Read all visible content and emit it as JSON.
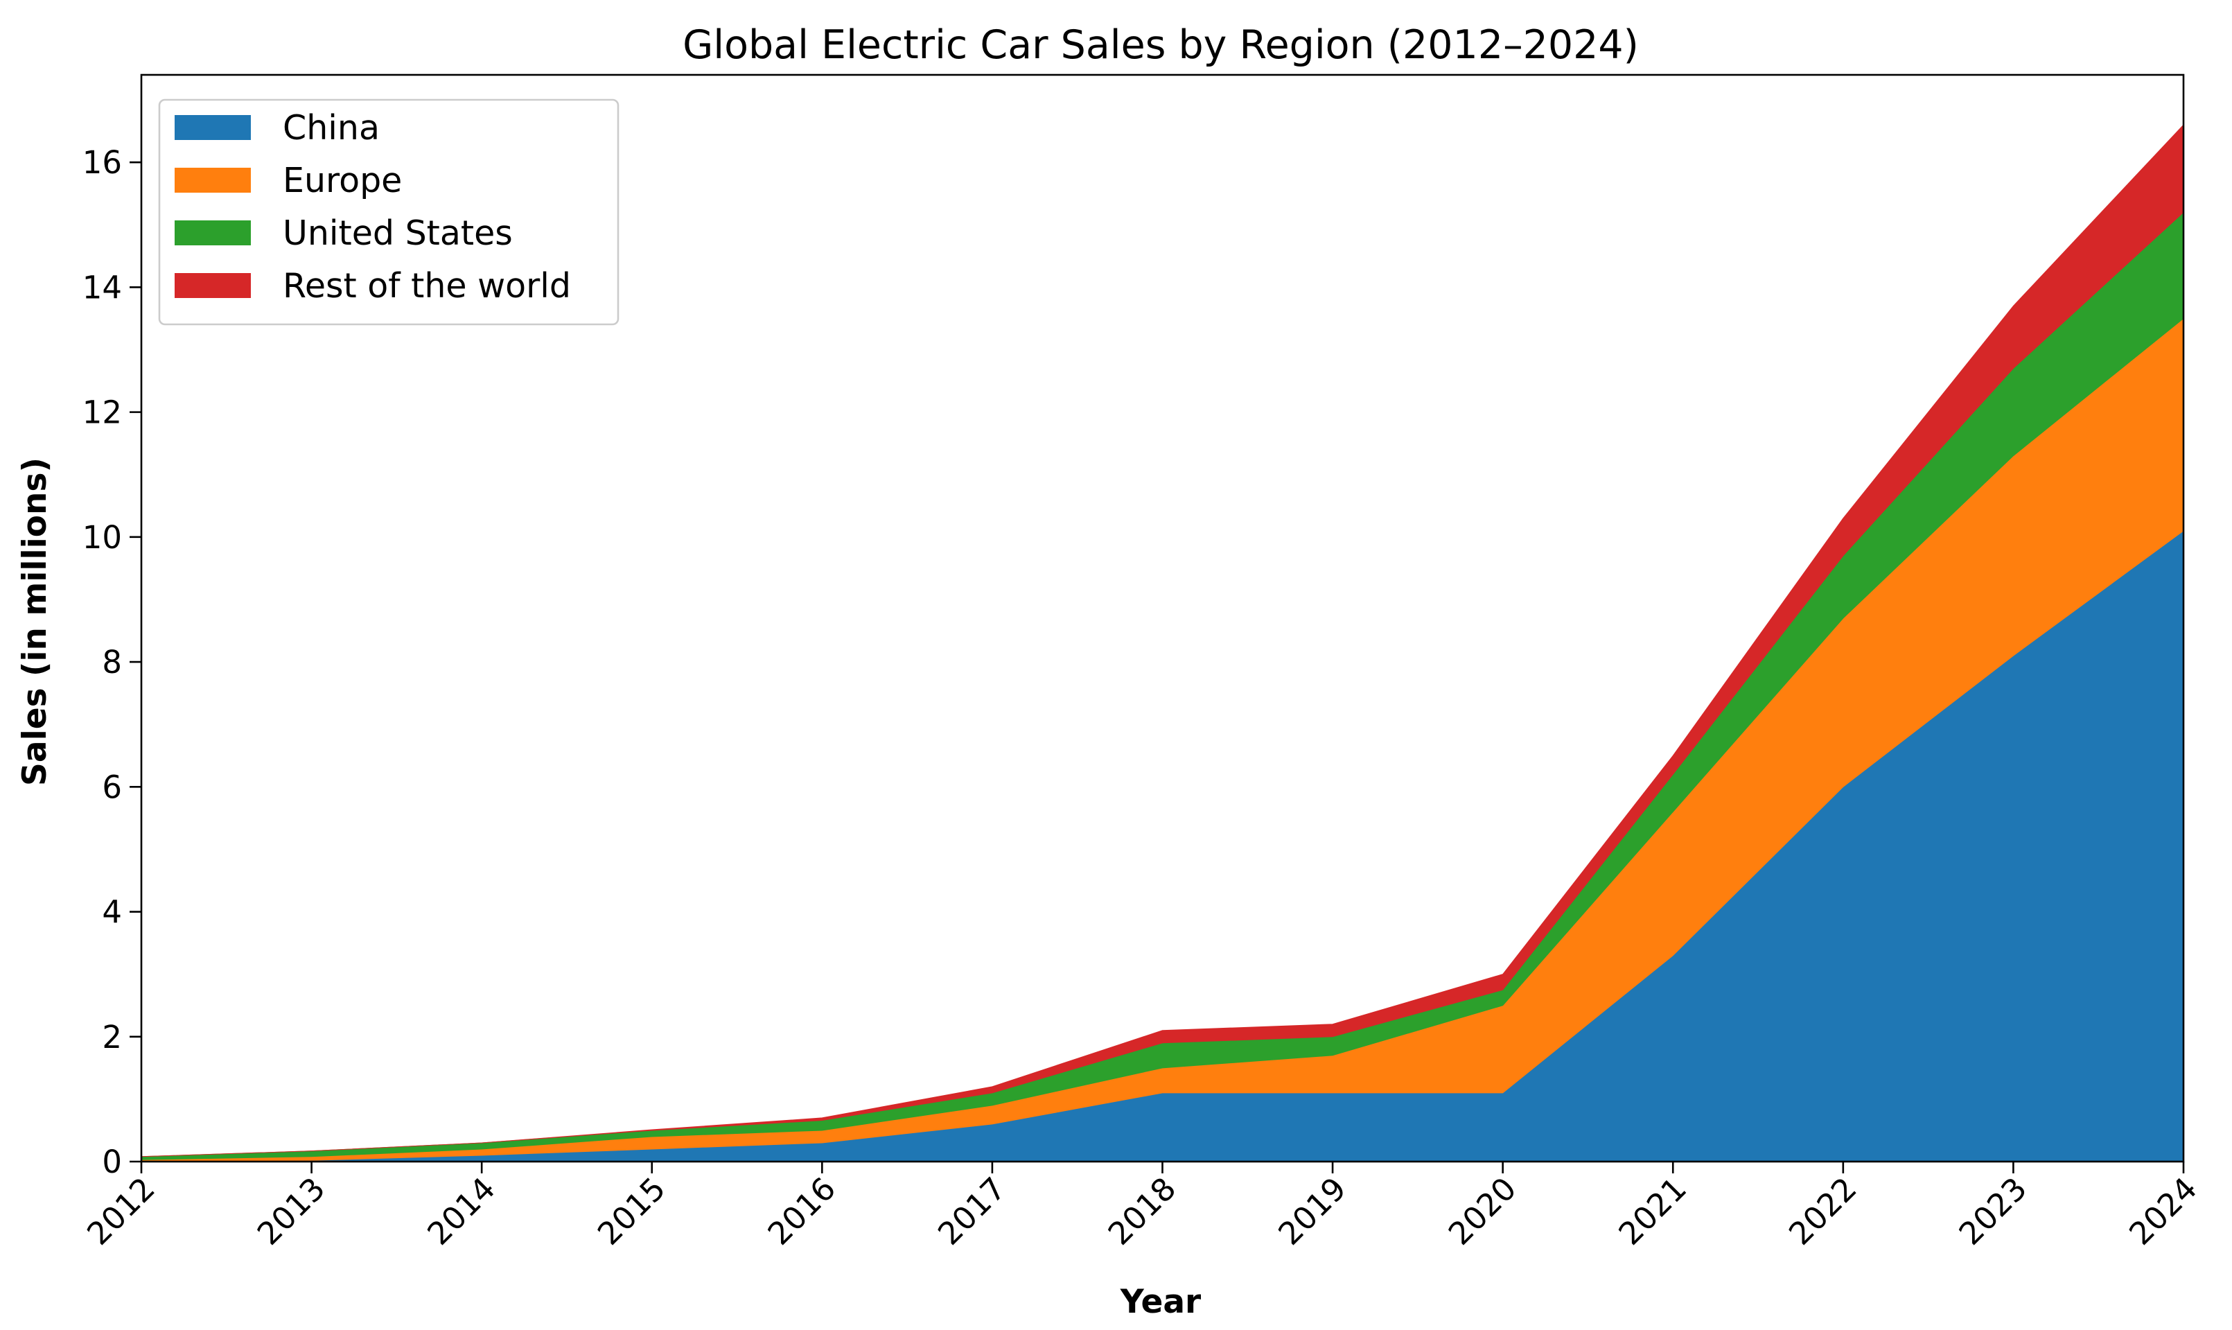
{
  "chart_data": {
    "type": "area",
    "stacked": true,
    "title": "Global Electric Car Sales by Region (2012–2024)",
    "xlabel": "Year",
    "ylabel": "Sales (in millions)",
    "x": [
      "2012",
      "2013",
      "2014",
      "2015",
      "2016",
      "2017",
      "2018",
      "2019",
      "2020",
      "2021",
      "2022",
      "2023",
      "2024"
    ],
    "xlim": [
      2012,
      2024
    ],
    "ylim": [
      0,
      17.4
    ],
    "yticks": [
      0,
      2,
      4,
      6,
      8,
      10,
      12,
      14,
      16
    ],
    "yticks_labels": [
      "0",
      "2",
      "4",
      "6",
      "8",
      "10",
      "12",
      "14",
      "16"
    ],
    "grid": false,
    "legend_position": "top-left",
    "series": [
      {
        "name": "China",
        "color": "#1f77b4",
        "values": [
          0.01,
          0.02,
          0.1,
          0.2,
          0.3,
          0.6,
          1.1,
          1.1,
          1.1,
          3.3,
          6.0,
          8.1,
          10.1
        ]
      },
      {
        "name": "Europe",
        "color": "#ff7f0e",
        "values": [
          0.02,
          0.06,
          0.1,
          0.2,
          0.2,
          0.3,
          0.4,
          0.6,
          1.4,
          2.3,
          2.7,
          3.2,
          3.4
        ]
      },
      {
        "name": "United States",
        "color": "#2ca02c",
        "values": [
          0.05,
          0.09,
          0.1,
          0.1,
          0.16,
          0.2,
          0.4,
          0.3,
          0.25,
          0.6,
          1.0,
          1.4,
          1.7
        ]
      },
      {
        "name": "Rest of the world",
        "color": "#d62728",
        "values": [
          0.0,
          0.0,
          0.0,
          0.01,
          0.04,
          0.1,
          0.2,
          0.2,
          0.25,
          0.3,
          0.6,
          1.0,
          1.4
        ]
      }
    ]
  }
}
